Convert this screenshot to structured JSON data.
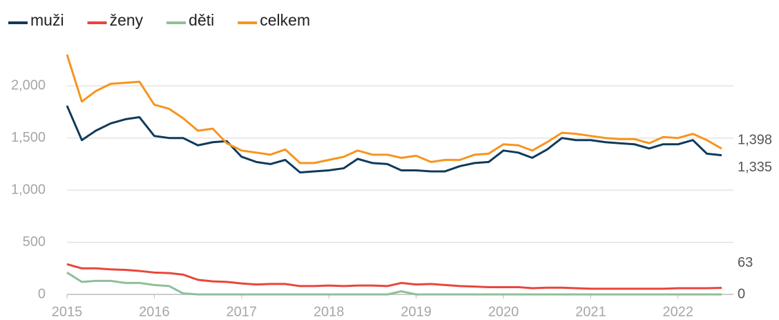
{
  "chart_data": {
    "type": "line",
    "x": [
      2015,
      2015.17,
      2015.33,
      2015.5,
      2015.67,
      2015.83,
      2016,
      2016.17,
      2016.33,
      2016.5,
      2016.67,
      2016.83,
      2017,
      2017.17,
      2017.33,
      2017.5,
      2017.67,
      2017.83,
      2018,
      2018.17,
      2018.33,
      2018.5,
      2018.67,
      2018.83,
      2019,
      2019.17,
      2019.33,
      2019.5,
      2019.67,
      2019.83,
      2020,
      2020.17,
      2020.33,
      2020.5,
      2020.67,
      2020.83,
      2021,
      2021.17,
      2021.33,
      2021.5,
      2021.67,
      2021.83,
      2022,
      2022.17,
      2022.33,
      2022.5
    ],
    "series": [
      {
        "name": "muži",
        "color": "#0e3a5c",
        "end_label": "1,335",
        "values": [
          1810,
          1480,
          1570,
          1640,
          1680,
          1700,
          1520,
          1500,
          1500,
          1430,
          1460,
          1470,
          1320,
          1270,
          1250,
          1290,
          1170,
          1180,
          1190,
          1210,
          1300,
          1260,
          1250,
          1190,
          1190,
          1180,
          1180,
          1230,
          1260,
          1270,
          1380,
          1360,
          1310,
          1390,
          1500,
          1480,
          1480,
          1460,
          1450,
          1440,
          1400,
          1440,
          1440,
          1480,
          1350,
          1335
        ]
      },
      {
        "name": "ženy",
        "color": "#e8463c",
        "end_label": "63",
        "values": [
          290,
          250,
          250,
          240,
          235,
          225,
          210,
          205,
          190,
          140,
          125,
          120,
          105,
          95,
          100,
          100,
          80,
          80,
          85,
          80,
          85,
          85,
          80,
          110,
          95,
          100,
          90,
          80,
          75,
          70,
          70,
          70,
          60,
          65,
          65,
          60,
          55,
          55,
          55,
          55,
          55,
          55,
          60,
          60,
          60,
          63
        ]
      },
      {
        "name": "děti",
        "color": "#8fbf9a",
        "end_label": "0",
        "values": [
          210,
          120,
          130,
          130,
          110,
          110,
          90,
          80,
          10,
          0,
          0,
          0,
          0,
          0,
          0,
          0,
          0,
          0,
          0,
          0,
          0,
          0,
          0,
          30,
          0,
          0,
          0,
          0,
          0,
          0,
          0,
          0,
          0,
          0,
          0,
          0,
          0,
          0,
          0,
          0,
          0,
          0,
          0,
          0,
          0,
          0
        ]
      },
      {
        "name": "celkem",
        "color": "#f7941d",
        "end_label": "1,398",
        "values": [
          2300,
          1850,
          1950,
          2020,
          2030,
          2040,
          1820,
          1780,
          1690,
          1570,
          1590,
          1450,
          1380,
          1360,
          1340,
          1390,
          1260,
          1260,
          1290,
          1320,
          1380,
          1340,
          1340,
          1310,
          1330,
          1270,
          1290,
          1290,
          1340,
          1350,
          1440,
          1430,
          1380,
          1460,
          1550,
          1540,
          1520,
          1500,
          1490,
          1490,
          1450,
          1510,
          1500,
          1540,
          1480,
          1398
        ]
      }
    ],
    "xlim": [
      2015,
      2022.5
    ],
    "xticks": [
      2015,
      2016,
      2017,
      2018,
      2019,
      2020,
      2021,
      2022
    ],
    "ylim": [
      0,
      2300
    ],
    "yticks": [
      0,
      500,
      {
        "value": 1000,
        "label": "1,000"
      },
      {
        "value": 1500,
        "label": "1,500"
      },
      {
        "value": 2000,
        "label": "2,000"
      }
    ],
    "grid": true
  }
}
